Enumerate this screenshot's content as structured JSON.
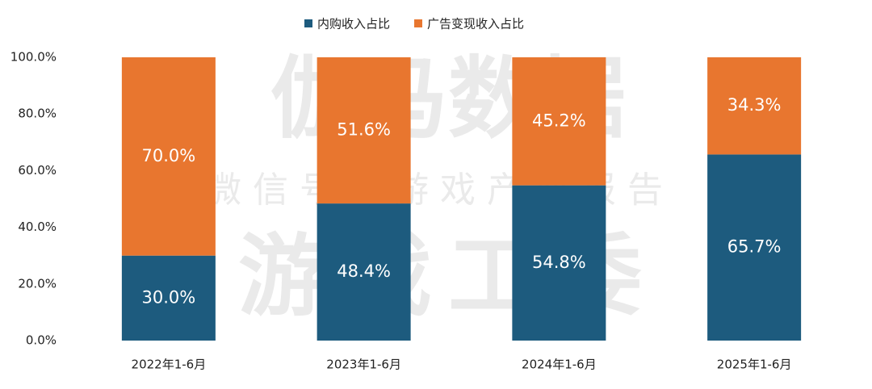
{
  "chart_data": {
    "type": "stacked-bar",
    "categories": [
      "2022年1-6月",
      "2023年1-6月",
      "2024年1-6月",
      "2025年1-6月"
    ],
    "series": [
      {
        "name": "内购收入占比",
        "color": "#1d5b7e",
        "values": [
          30.0,
          48.4,
          54.8,
          65.7
        ],
        "value_labels": [
          "30.0%",
          "48.4%",
          "54.8%",
          "65.7%"
        ]
      },
      {
        "name": "广告变现收入占比",
        "color": "#e8762f",
        "values": [
          70.0,
          51.6,
          45.2,
          34.3
        ],
        "value_labels": [
          "70.0%",
          "51.6%",
          "45.2%",
          "34.3%"
        ]
      }
    ],
    "ylim": [
      0,
      100
    ],
    "yticks": [
      {
        "value": 0,
        "label": "0.0%"
      },
      {
        "value": 20,
        "label": "20.0%"
      },
      {
        "value": 40,
        "label": "40.0%"
      },
      {
        "value": 60,
        "label": "60.0%"
      },
      {
        "value": 80,
        "label": "80.0%"
      },
      {
        "value": 100,
        "label": "100.0%"
      }
    ],
    "legend": "top"
  },
  "watermarks": [
    "伽马数据",
    "微信号：游戏产业报告",
    "游戏工委"
  ]
}
